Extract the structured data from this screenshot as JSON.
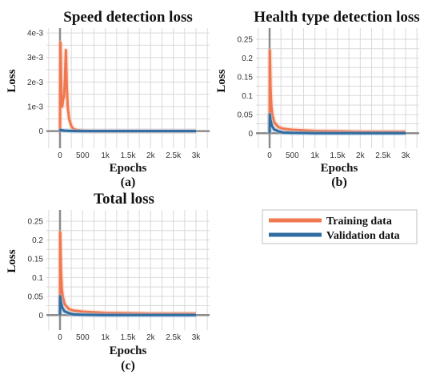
{
  "colors": {
    "training": "#f07850",
    "training_light": "#f8c2ad",
    "validation": "#2f6da0",
    "validation_light": "#9dbbd6",
    "grid": "#d9d9d9",
    "axis": "#8c8c8c"
  },
  "legend": {
    "placement": "right",
    "entries": [
      {
        "label": "Training data",
        "color": "#f07850"
      },
      {
        "label": "Validation data",
        "color": "#2f6da0"
      }
    ]
  },
  "chart_data": [
    {
      "type": "line",
      "title": "Speed detection loss",
      "xlabel": "Epochs",
      "ylabel": "Loss",
      "panel_label": "(a)",
      "xlim": [
        -300,
        3300
      ],
      "ylim": [
        -0.0007,
        0.0042
      ],
      "x_ticks": [
        0,
        500,
        1000,
        1500,
        2000,
        2500,
        3000
      ],
      "x_tick_labels": [
        "0",
        "500",
        "1k",
        "1.5k",
        "2k",
        "2.5k",
        "3k"
      ],
      "y_ticks": [
        0,
        0.001,
        0.002,
        0.003,
        0.004
      ],
      "y_tick_labels": [
        "0",
        "1e-3",
        "2e-3",
        "3e-3",
        "4e-3"
      ],
      "grid": true,
      "series": [
        {
          "name": "Training data",
          "x": [
            0,
            10,
            30,
            50,
            70,
            90,
            110,
            130,
            150,
            170,
            200,
            250,
            300,
            400,
            500,
            700,
            1000,
            2000,
            3000
          ],
          "y": [
            0.0,
            0.0036,
            0.0016,
            0.001,
            0.0013,
            0.0014,
            0.0022,
            0.0033,
            0.0018,
            0.001,
            0.0005,
            0.0002,
            8e-05,
            3e-05,
            1e-05,
            0.0,
            0.0,
            0.0,
            0.0
          ]
        },
        {
          "name": "Validation data",
          "x": [
            0,
            10,
            50,
            100,
            200,
            300,
            500,
            1000,
            2000,
            3000
          ],
          "y": [
            0.0,
            5e-05,
            3e-05,
            2e-05,
            1e-05,
            0.0,
            0.0,
            0.0,
            0.0,
            0.0
          ]
        }
      ]
    },
    {
      "type": "line",
      "title": "Health type detection loss",
      "xlabel": "Epochs",
      "ylabel": "Loss",
      "panel_label": "(b)",
      "xlim": [
        -300,
        3300
      ],
      "ylim": [
        -0.04,
        0.28
      ],
      "x_ticks": [
        0,
        500,
        1000,
        1500,
        2000,
        2500,
        3000
      ],
      "x_tick_labels": [
        "0",
        "500",
        "1k",
        "1.5k",
        "2k",
        "2.5k",
        "3k"
      ],
      "y_ticks": [
        0,
        0.05,
        0.1,
        0.15,
        0.2,
        0.25
      ],
      "y_tick_labels": [
        "0",
        "0.05",
        "0.1",
        "0.15",
        "0.2",
        "0.25"
      ],
      "grid": true,
      "series": [
        {
          "name": "Training data",
          "x": [
            0,
            5,
            20,
            40,
            60,
            80,
            100,
            150,
            200,
            300,
            500,
            1000,
            1500,
            2000,
            2500,
            3000
          ],
          "y": [
            0.0,
            0.22,
            0.12,
            0.07,
            0.05,
            0.04,
            0.03,
            0.022,
            0.016,
            0.012,
            0.009,
            0.006,
            0.005,
            0.004,
            0.004,
            0.004
          ]
        },
        {
          "name": "Validation data",
          "x": [
            0,
            5,
            20,
            50,
            100,
            200,
            300,
            500,
            1000,
            2000,
            3000
          ],
          "y": [
            0.0,
            0.05,
            0.035,
            0.02,
            0.01,
            0.005,
            0.002,
            0.001,
            0.0,
            0.0,
            0.0
          ]
        }
      ]
    },
    {
      "type": "line",
      "title": "Total loss",
      "xlabel": "Epochs",
      "ylabel": "Loss",
      "panel_label": "(c)",
      "xlim": [
        -300,
        3300
      ],
      "ylim": [
        -0.04,
        0.28
      ],
      "x_ticks": [
        0,
        500,
        1000,
        1500,
        2000,
        2500,
        3000
      ],
      "x_tick_labels": [
        "0",
        "500",
        "1k",
        "1.5k",
        "2k",
        "2.5k",
        "3k"
      ],
      "y_ticks": [
        0,
        0.05,
        0.1,
        0.15,
        0.2,
        0.25
      ],
      "y_tick_labels": [
        "0",
        "0.05",
        "0.1",
        "0.15",
        "0.2",
        "0.25"
      ],
      "grid": true,
      "series": [
        {
          "name": "Training data",
          "x": [
            0,
            5,
            20,
            40,
            60,
            80,
            100,
            150,
            200,
            300,
            500,
            1000,
            1500,
            2000,
            2500,
            3000
          ],
          "y": [
            0.0,
            0.22,
            0.12,
            0.07,
            0.05,
            0.04,
            0.03,
            0.022,
            0.016,
            0.012,
            0.009,
            0.006,
            0.005,
            0.004,
            0.004,
            0.004
          ]
        },
        {
          "name": "Validation data",
          "x": [
            0,
            5,
            20,
            50,
            100,
            200,
            300,
            500,
            1000,
            2000,
            3000
          ],
          "y": [
            0.0,
            0.05,
            0.035,
            0.02,
            0.01,
            0.005,
            0.002,
            0.001,
            0.0,
            0.0,
            0.0
          ]
        }
      ]
    }
  ]
}
